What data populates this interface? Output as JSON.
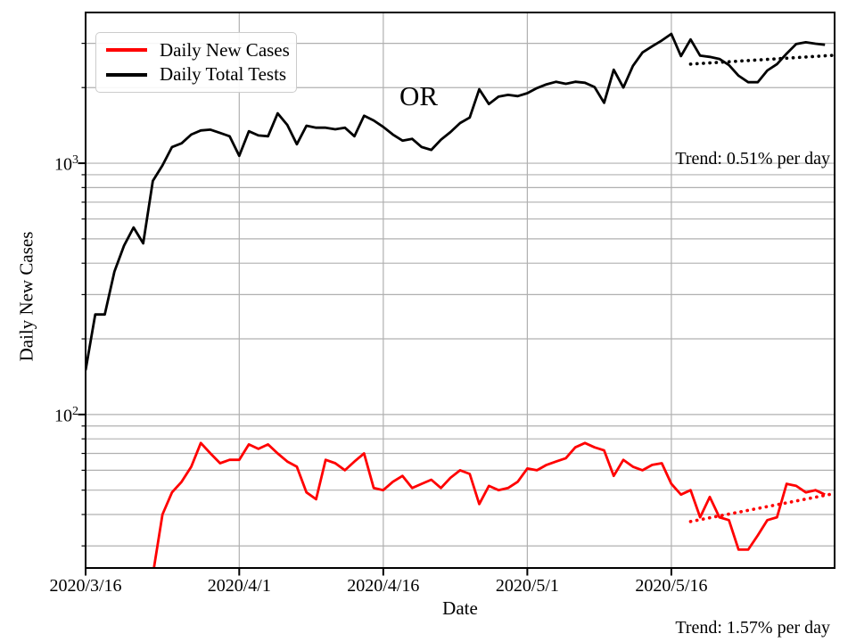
{
  "chart_data": {
    "type": "line",
    "title": "OR",
    "xlabel": "Date",
    "ylabel": "Daily New Cases",
    "axes": {
      "y_scale": "log",
      "ylim": [
        24.5,
        3980
      ],
      "xlim_days": [
        0,
        78
      ],
      "grid": true,
      "grid_color": "#b0b0b0",
      "frame_color": "#000000"
    },
    "x": [
      "2020/3/16",
      "2020/3/17",
      "2020/3/18",
      "2020/3/19",
      "2020/3/20",
      "2020/3/21",
      "2020/3/22",
      "2020/3/23",
      "2020/3/24",
      "2020/3/25",
      "2020/3/26",
      "2020/3/27",
      "2020/3/28",
      "2020/3/29",
      "2020/3/30",
      "2020/3/31",
      "2020/4/1",
      "2020/4/2",
      "2020/4/3",
      "2020/4/4",
      "2020/4/5",
      "2020/4/6",
      "2020/4/7",
      "2020/4/8",
      "2020/4/9",
      "2020/4/10",
      "2020/4/11",
      "2020/4/12",
      "2020/4/13",
      "2020/4/14",
      "2020/4/15",
      "2020/4/16",
      "2020/4/17",
      "2020/4/18",
      "2020/4/19",
      "2020/4/20",
      "2020/4/21",
      "2020/4/22",
      "2020/4/23",
      "2020/4/24",
      "2020/4/25",
      "2020/4/26",
      "2020/4/27",
      "2020/4/28",
      "2020/4/29",
      "2020/4/30",
      "2020/5/1",
      "2020/5/2",
      "2020/5/3",
      "2020/5/4",
      "2020/5/5",
      "2020/5/6",
      "2020/5/7",
      "2020/5/8",
      "2020/5/9",
      "2020/5/10",
      "2020/5/11",
      "2020/5/12",
      "2020/5/13",
      "2020/5/14",
      "2020/5/15",
      "2020/5/16",
      "2020/5/17",
      "2020/5/18",
      "2020/5/19",
      "2020/5/20",
      "2020/5/21",
      "2020/5/22",
      "2020/5/23",
      "2020/5/24",
      "2020/5/25",
      "2020/5/26",
      "2020/5/27",
      "2020/5/28",
      "2020/5/29",
      "2020/5/30",
      "2020/5/31",
      "2020/6/1"
    ],
    "series": [
      {
        "id": "daily-new-cases",
        "name": "Daily New Cases",
        "color": "#ff0000",
        "values": [
          null,
          null,
          null,
          null,
          null,
          null,
          null,
          23,
          40,
          49,
          54,
          62,
          77,
          70,
          64,
          66,
          66,
          76,
          73,
          76,
          70,
          65,
          62,
          49,
          46,
          66,
          64,
          60,
          65,
          70,
          51,
          50,
          54,
          57,
          51,
          53,
          55,
          51,
          56,
          60,
          58,
          44,
          52,
          50,
          51,
          54,
          61,
          60,
          63,
          65,
          67,
          74,
          77,
          74,
          72,
          57,
          66,
          62,
          60,
          63,
          64,
          53,
          48,
          50,
          39,
          47,
          39,
          38,
          29,
          29,
          33,
          38,
          39,
          53,
          52,
          49,
          50,
          48
        ]
      },
      {
        "id": "daily-total-tests",
        "name": "Daily Total Tests",
        "color": "#000000",
        "values": [
          150,
          250,
          250,
          370,
          470,
          555,
          480,
          850,
          980,
          1160,
          1200,
          1300,
          1350,
          1360,
          1320,
          1280,
          1070,
          1340,
          1290,
          1280,
          1580,
          1420,
          1190,
          1410,
          1385,
          1385,
          1365,
          1385,
          1280,
          1545,
          1480,
          1395,
          1300,
          1230,
          1250,
          1160,
          1130,
          1240,
          1330,
          1445,
          1520,
          1970,
          1720,
          1840,
          1870,
          1850,
          1900,
          1990,
          2060,
          2110,
          2070,
          2110,
          2090,
          2010,
          1740,
          2355,
          2000,
          2440,
          2760,
          2920,
          3080,
          3270,
          2670,
          3110,
          2680,
          2650,
          2600,
          2460,
          2230,
          2100,
          2100,
          2340,
          2480,
          2730,
          2980,
          3030,
          2990,
          2960
        ]
      }
    ],
    "trends": [
      {
        "id": "total-tests-trend",
        "label": "Trend: 0.51% per day",
        "color": "#000000",
        "style": "dotted",
        "start_day": 63,
        "end_day": 78,
        "start_value": 2480,
        "end_value": 2690
      },
      {
        "id": "new-cases-trend",
        "label": "Trend: 1.57% per day",
        "color": "#ff0000",
        "style": "dotted",
        "start_day": 63,
        "end_day": 78,
        "start_value": 37.5,
        "end_value": 48.5
      }
    ],
    "legend": {
      "position": "upper-left",
      "items": [
        {
          "label": "Daily New Cases",
          "color": "#ff0000"
        },
        {
          "label": "Daily Total Tests",
          "color": "#000000"
        }
      ]
    },
    "x_ticks": [
      {
        "day": 0,
        "label": "2020/3/16"
      },
      {
        "day": 16,
        "label": "2020/4/1"
      },
      {
        "day": 31,
        "label": "2020/4/16"
      },
      {
        "day": 46,
        "label": "2020/5/1"
      },
      {
        "day": 61,
        "label": "2020/5/16"
      }
    ],
    "y_major_ticks": [
      {
        "value": 1000,
        "base": "10",
        "exp": "3"
      },
      {
        "value": 100,
        "base": "10",
        "exp": "2"
      }
    ],
    "y_gridlines": [
      30,
      40,
      50,
      60,
      70,
      80,
      90,
      100,
      200,
      300,
      400,
      500,
      600,
      700,
      800,
      900,
      1000,
      2000,
      3000
    ]
  }
}
